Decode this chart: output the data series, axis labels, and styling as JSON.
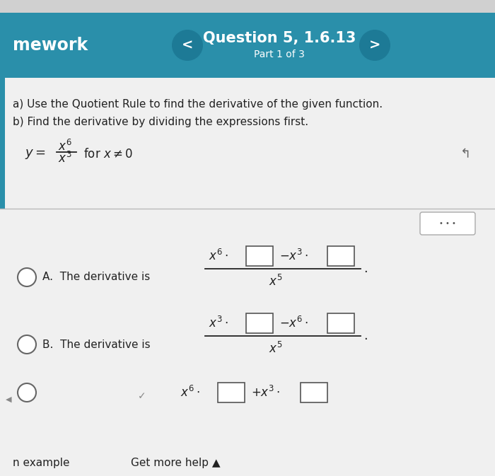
{
  "bg_page": "#e0e0e0",
  "bg_header": "#2a8faa",
  "bg_content": "#f0f0f0",
  "header_left": "mework",
  "header_title": "Question 5, 1.6.13",
  "header_subtitle": "Part 1 of 3",
  "part_a": "a) Use the Quotient Rule to find the derivative of the given function.",
  "part_b": "b) Find the derivative by dividing the expressions first.",
  "footer_left": "n example",
  "footer_right": "Get more help ▲",
  "text_color": "#222222",
  "header_text_color": "#ffffff",
  "fig_width": 7.0,
  "fig_height": 6.73,
  "dpi": 100
}
